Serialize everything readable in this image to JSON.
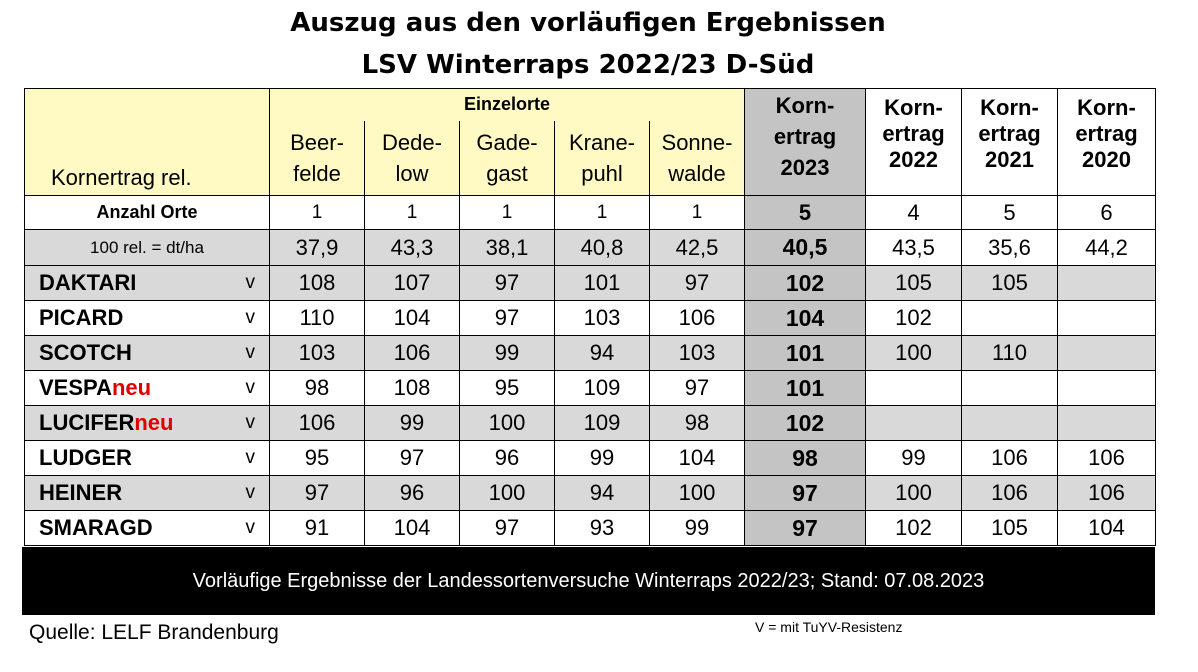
{
  "title_line1": "Auszug aus den vorläufigen Ergebnissen",
  "title_line2": "LSV Winterraps 2022/23  D-Süd",
  "header": {
    "row_label": "Kornertrag rel.",
    "einzelorte": "Einzelorte",
    "locations": [
      {
        "l1": "Beer-",
        "l2": "felde"
      },
      {
        "l1": "Dede-",
        "l2": "low"
      },
      {
        "l1": "Gade-",
        "l2": "gast"
      },
      {
        "l1": "Krane-",
        "l2": "puhl"
      },
      {
        "l1": "Sonne-",
        "l2": "walde"
      }
    ],
    "korn2023": {
      "l1": "Korn-",
      "l2": "ertrag",
      "l3": "2023"
    },
    "korn2022": {
      "l1": "Korn-",
      "l2": "ertrag",
      "l3": "2022"
    },
    "korn2021": {
      "l1": "Korn-",
      "l2": "ertrag",
      "l3": "2021"
    },
    "korn2020": {
      "l1": "Korn-",
      "l2": "ertrag",
      "l3": "2020"
    }
  },
  "anzahl": {
    "label": "Anzahl Orte",
    "values": [
      "1",
      "1",
      "1",
      "1",
      "1",
      "5",
      "4",
      "5",
      "6"
    ]
  },
  "rel": {
    "label": "100 rel. = dt/ha",
    "values": [
      "37,9",
      "43,3",
      "38,1",
      "40,8",
      "42,5",
      "40,5",
      "43,5",
      "35,6",
      "44,2"
    ]
  },
  "varieties": [
    {
      "name": "DAKTARI",
      "neu": "",
      "mark": "v",
      "values": [
        "108",
        "107",
        "97",
        "101",
        "97",
        "102",
        "105",
        "105",
        ""
      ]
    },
    {
      "name": "PICARD",
      "neu": "",
      "mark": "v",
      "values": [
        "110",
        "104",
        "97",
        "103",
        "106",
        "104",
        "102",
        "",
        ""
      ]
    },
    {
      "name": "SCOTCH",
      "neu": "",
      "mark": "v",
      "values": [
        "103",
        "106",
        "99",
        "94",
        "103",
        "101",
        "100",
        "110",
        ""
      ]
    },
    {
      "name": "VESPA",
      "neu": "neu",
      "mark": "v",
      "values": [
        "98",
        "108",
        "95",
        "109",
        "97",
        "101",
        "",
        "",
        ""
      ]
    },
    {
      "name": "LUCIFER",
      "neu": "neu",
      "mark": "v",
      "values": [
        "106",
        "99",
        "100",
        "109",
        "98",
        "102",
        "",
        "",
        ""
      ]
    },
    {
      "name": "LUDGER",
      "neu": "",
      "mark": "v",
      "values": [
        "95",
        "97",
        "96",
        "99",
        "104",
        "98",
        "99",
        "106",
        "106"
      ]
    },
    {
      "name": "HEINER",
      "neu": "",
      "mark": "v",
      "values": [
        "97",
        "96",
        "100",
        "94",
        "100",
        "97",
        "100",
        "106",
        "106"
      ]
    },
    {
      "name": "SMARAGD",
      "neu": "",
      "mark": "v",
      "values": [
        "91",
        "104",
        "97",
        "93",
        "99",
        "97",
        "102",
        "105",
        "104"
      ]
    }
  ],
  "footer": "Vorläufige Ergebnisse der Landessortenversuche Winterraps 2022/23; Stand: 07.08.2023",
  "source": "Quelle: LELF Brandenburg",
  "note": "V = mit TuYV-Resistenz"
}
